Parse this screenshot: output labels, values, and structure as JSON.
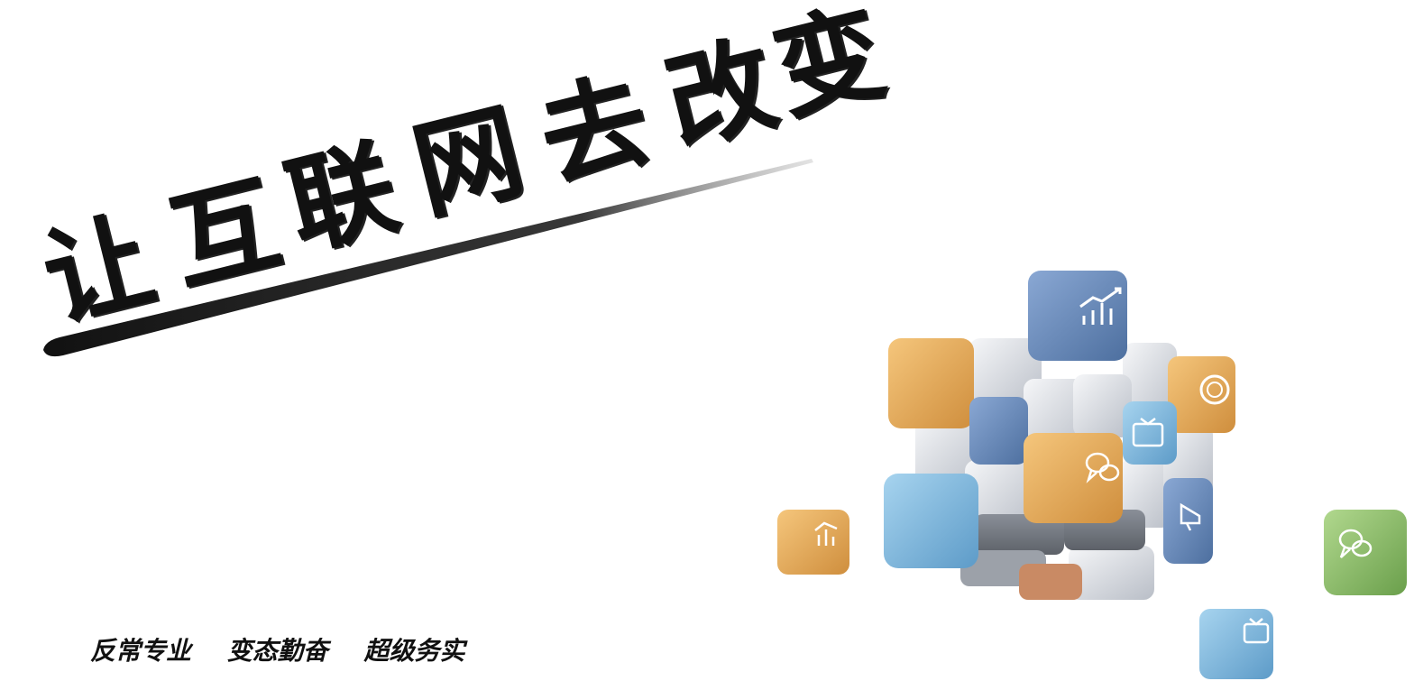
{
  "slogan": {
    "chars": [
      "让",
      "互",
      "联",
      "网",
      "去",
      "改",
      "变"
    ]
  },
  "tagline": {
    "items": [
      "反常专业",
      "变态勤奋",
      "超级务实"
    ]
  },
  "icons": {
    "cube_top": "bar-chart-growth-icon",
    "cube_right": "coin-icon",
    "cube_tv": "tv-icon",
    "cube_chat": "chat-bubbles-icon",
    "cube_megaphone": "megaphone-icon",
    "cube_small_left": "bar-chart-icon",
    "cube_small_right": "chat-bubbles-icon",
    "cube_small_bottom": "tv-icon"
  },
  "colors": {
    "blue": "#6f90c0",
    "light_blue": "#8cc0e2",
    "orange": "#e7ae5c",
    "white": "#e9ecf1",
    "green": "#8dc06c",
    "text": "#111111"
  }
}
